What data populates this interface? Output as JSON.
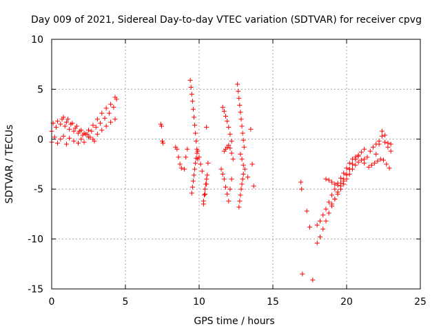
{
  "chart_data": {
    "type": "scatter",
    "title": "Day 009 of 2021, Sidereal Day-to-day VTEC variation (SDTVAR) for receiver cpvg",
    "xlabel": "GPS time / hours",
    "ylabel": "SDTVAR / TECUs",
    "xlim": [
      0,
      25
    ],
    "ylim": [
      -15,
      10
    ],
    "xticks": [
      0,
      5,
      10,
      15,
      20,
      25
    ],
    "yticks": [
      -15,
      -10,
      -5,
      0,
      5,
      10
    ],
    "grid": true,
    "marker": "plus",
    "color": "#ff0000",
    "series": [
      {
        "name": "SDTVAR",
        "segments": [
          {
            "x": [
              0.0,
              0.3,
              0.6,
              0.9,
              1.2,
              1.5,
              1.8,
              2.1,
              2.4,
              2.7,
              3.0,
              3.3,
              3.6,
              3.9,
              4.2,
              4.4
            ],
            "y": [
              0.8,
              1.2,
              1.5,
              1.3,
              1.0,
              0.8,
              0.6,
              0.4,
              0.5,
              0.8,
              1.2,
              1.6,
              2.1,
              2.6,
              3.2,
              4.0
            ]
          },
          {
            "x": [
              0.0,
              0.2,
              0.4,
              0.6,
              0.8,
              1.0,
              1.2,
              1.5,
              1.8,
              2.0,
              2.2,
              2.5,
              2.8,
              3.1,
              3.4,
              3.7,
              4.0,
              4.3
            ],
            "y": [
              -0.3,
              0.2,
              -0.4,
              0.0,
              0.3,
              -0.5,
              0.1,
              -0.2,
              -0.4,
              0.0,
              -0.3,
              0.2,
              0.0,
              0.5,
              0.9,
              1.3,
              1.7,
              2.0
            ]
          },
          {
            "x": [
              0.1,
              0.4,
              0.7,
              1.0,
              1.3,
              1.6,
              1.9,
              2.2,
              2.5,
              2.8,
              3.1,
              3.4,
              3.7,
              4.0,
              4.3
            ],
            "y": [
              1.6,
              1.8,
              2.0,
              1.7,
              1.5,
              1.1,
              0.8,
              0.6,
              0.9,
              1.4,
              2.0,
              2.6,
              3.1,
              3.5,
              4.2
            ]
          },
          {
            "x": [
              0.8,
              1.1,
              1.4,
              1.7,
              2.0,
              2.3,
              2.6,
              2.9
            ],
            "y": [
              2.2,
              2.0,
              1.6,
              1.3,
              0.9,
              0.5,
              0.2,
              -0.2
            ]
          },
          {
            "x": [
              7.4,
              7.45,
              7.5,
              7.55
            ],
            "y": [
              1.5,
              1.3,
              -0.2,
              -0.4
            ]
          },
          {
            "x": [
              8.4,
              8.5,
              8.6,
              8.7,
              8.8,
              9.0,
              9.1,
              9.2
            ],
            "y": [
              -0.8,
              -1.0,
              -1.8,
              -2.5,
              -2.9,
              -3.0,
              -1.8,
              -1.0
            ]
          },
          {
            "x": [
              9.4,
              9.45,
              9.5,
              9.55,
              9.6,
              9.65,
              9.7,
              9.75,
              9.8,
              9.85,
              9.9
            ],
            "y": [
              5.9,
              5.2,
              4.5,
              3.8,
              3.0,
              2.2,
              1.4,
              0.6,
              -0.2,
              -1.0,
              -2.0
            ]
          },
          {
            "x": [
              9.5,
              9.55,
              9.6,
              9.65,
              9.7,
              9.75,
              9.8,
              9.85
            ],
            "y": [
              -5.4,
              -4.8,
              -4.2,
              -3.6,
              -3.0,
              -2.4,
              -1.9,
              -1.4
            ]
          },
          {
            "x": [
              9.9,
              10.0,
              10.1,
              10.2,
              10.3,
              10.4,
              10.5
            ],
            "y": [
              -1.2,
              -1.8,
              -2.5,
              -3.2,
              -6.5,
              -5.5,
              -4.5
            ]
          },
          {
            "x": [
              10.3,
              10.35,
              10.4,
              10.45,
              10.5,
              10.55
            ],
            "y": [
              -6.2,
              -5.6,
              -5.0,
              -4.5,
              -4.0,
              -3.6
            ]
          },
          {
            "x": [
              10.5,
              10.6
            ],
            "y": [
              1.2,
              -2.4
            ]
          },
          {
            "x": [
              11.5,
              11.6,
              11.7,
              11.8,
              11.9,
              12.0,
              12.1,
              12.2
            ],
            "y": [
              -3.0,
              -3.5,
              -4.0,
              -4.8,
              -5.5,
              -6.2,
              -5.0,
              -4.0
            ]
          },
          {
            "x": [
              11.6,
              11.7,
              11.8,
              11.9,
              12.0,
              12.1,
              12.2
            ],
            "y": [
              3.2,
              2.8,
              2.3,
              1.8,
              1.2,
              0.5,
              -0.2
            ]
          },
          {
            "x": [
              11.7,
              11.8,
              11.9,
              12.0,
              12.1,
              12.2,
              12.3
            ],
            "y": [
              -1.2,
              -1.0,
              -0.8,
              -0.6,
              -0.9,
              -1.4,
              -2.0
            ]
          },
          {
            "x": [
              12.6,
              12.65,
              12.7,
              12.75,
              12.8,
              12.85,
              12.9,
              12.95,
              13.0,
              13.05
            ],
            "y": [
              5.5,
              4.8,
              4.1,
              3.4,
              2.7,
              2.0,
              1.3,
              0.6,
              -0.1,
              -0.8
            ]
          },
          {
            "x": [
              12.7,
              12.75,
              12.8,
              12.85,
              12.9,
              12.95,
              13.0
            ],
            "y": [
              -6.8,
              -6.2,
              -5.6,
              -5.0,
              -4.5,
              -4.0,
              -3.5
            ]
          },
          {
            "x": [
              12.8,
              12.9,
              13.0,
              13.1
            ],
            "y": [
              -1.5,
              -2.0,
              -2.6,
              -3.0
            ]
          },
          {
            "x": [
              13.3,
              13.5,
              13.6,
              13.7
            ],
            "y": [
              -3.8,
              1.0,
              -2.5,
              -4.7
            ]
          },
          {
            "x": [
              16.9,
              16.95,
              17.0
            ],
            "y": [
              -4.3,
              -5.0,
              -13.5
            ]
          },
          {
            "x": [
              17.3,
              17.5,
              17.7
            ],
            "y": [
              -7.2,
              -8.8,
              -14.1
            ]
          },
          {
            "x": [
              18.0,
              18.2,
              18.4,
              18.6,
              18.8,
              19.0,
              19.2,
              19.4,
              19.6,
              19.8,
              20.0,
              20.2,
              20.4,
              20.6,
              20.8,
              21.0,
              21.2
            ],
            "y": [
              -10.4,
              -9.8,
              -9.0,
              -8.2,
              -7.4,
              -6.7,
              -6.0,
              -5.3,
              -4.7,
              -4.2,
              -3.6,
              -3.0,
              -2.5,
              -2.0,
              -1.6,
              -1.3,
              -1.0
            ]
          },
          {
            "x": [
              18.0,
              18.2,
              18.4,
              18.6,
              18.8,
              19.0,
              19.2,
              19.4,
              19.6,
              19.8,
              20.0,
              20.2,
              20.4,
              20.6
            ],
            "y": [
              -8.6,
              -8.2,
              -7.6,
              -7.0,
              -6.3,
              -5.6,
              -5.0,
              -4.4,
              -3.9,
              -3.4,
              -2.9,
              -2.4,
              -2.0,
              -1.8
            ]
          },
          {
            "x": [
              18.6,
              18.8,
              19.0,
              19.2,
              19.4,
              19.6,
              19.8,
              20.0,
              20.2,
              20.4,
              20.6,
              20.8
            ],
            "y": [
              -4.0,
              -4.1,
              -4.3,
              -4.5,
              -4.6,
              -4.4,
              -4.0,
              -3.5,
              -3.0,
              -2.5,
              -2.0,
              -1.7
            ]
          },
          {
            "x": [
              19.0,
              19.2,
              19.4,
              19.6,
              19.8,
              20.0,
              20.2,
              20.4,
              20.6,
              20.8,
              21.0,
              21.2
            ],
            "y": [
              -6.5,
              -6.0,
              -5.5,
              -5.0,
              -4.5,
              -4.0,
              -3.5,
              -3.0,
              -2.6,
              -2.3,
              -2.1,
              -2.0
            ]
          },
          {
            "x": [
              21.2,
              21.4,
              21.6,
              21.8,
              22.0,
              22.2,
              22.4,
              22.6,
              22.8,
              23.0
            ],
            "y": [
              -2.4,
              -1.8,
              -1.2,
              -0.8,
              -1.5,
              -0.5,
              0.8,
              0.4,
              -0.4,
              -1.2
            ]
          },
          {
            "x": [
              21.5,
              21.7,
              21.9,
              22.1,
              22.3,
              22.5,
              22.7,
              22.9
            ],
            "y": [
              -2.8,
              -2.6,
              -2.4,
              -2.2,
              -2.0,
              -2.1,
              -2.5,
              -2.9
            ]
          },
          {
            "x": [
              22.0,
              22.2,
              22.4,
              22.6,
              22.8,
              23.0
            ],
            "y": [
              -0.5,
              -0.2,
              0.3,
              -0.3,
              -0.8,
              -0.5
            ]
          }
        ]
      }
    ]
  }
}
